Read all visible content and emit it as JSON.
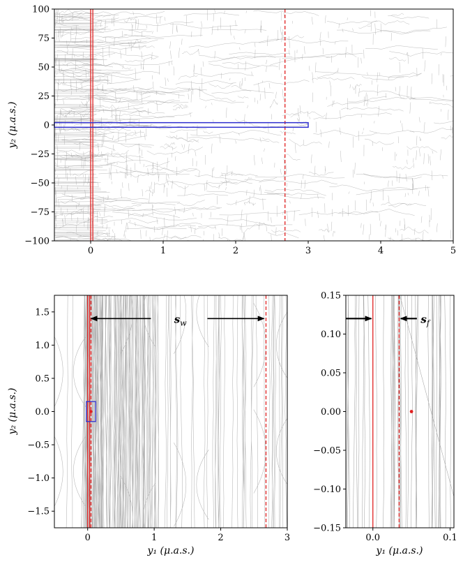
{
  "chart_data": [
    {
      "type": "line",
      "panel": "top",
      "xlim": [
        -0.5,
        5
      ],
      "ylim": [
        -100,
        100
      ],
      "xticks": [
        0,
        1,
        2,
        3,
        4,
        5
      ],
      "yticks": [
        -100,
        -75,
        -50,
        -25,
        0,
        25,
        50,
        75,
        100
      ],
      "xtick_labels": [
        "0",
        "1",
        "2",
        "3",
        "4",
        "5"
      ],
      "ytick_labels": [
        "−100",
        "−75",
        "−50",
        "−25",
        "0",
        "25",
        "50",
        "75",
        "100"
      ],
      "xlabel": "",
      "ylabel": "y₂ (μ.a.s.)",
      "caustic_color": "#9a9a9a",
      "reference_lines": [
        {
          "x": 0,
          "style": "solid",
          "color": "#e02020"
        },
        {
          "x": 0.03,
          "style": "solid",
          "color": "#e02020"
        },
        {
          "x": 2.68,
          "style": "dashed",
          "color": "#e02020"
        }
      ],
      "highlight_box": {
        "x": [
          -0.5,
          3
        ],
        "y": [
          -2,
          2
        ],
        "color": "#3030d0"
      },
      "grid": false
    },
    {
      "type": "line",
      "panel": "bottom-left",
      "xlim": [
        -0.5,
        3
      ],
      "ylim": [
        -1.75,
        1.75
      ],
      "xticks": [
        0,
        1,
        2,
        3
      ],
      "yticks": [
        -1.5,
        -1.0,
        -0.5,
        0.0,
        0.5,
        1.0,
        1.5
      ],
      "xtick_labels": [
        "0",
        "1",
        "2",
        "3"
      ],
      "ytick_labels": [
        "−1.5",
        "−1.0",
        "−0.5",
        "0.0",
        "0.5",
        "1.0",
        "1.5"
      ],
      "xlabel": "y₁ (μ.a.s.)",
      "ylabel": "y₂ (μ.a.s.)",
      "caustic_color": "#9a9a9a",
      "reference_lines": [
        {
          "x": 0,
          "style": "solid",
          "color": "#e02020"
        },
        {
          "x": 0.03,
          "style": "solid",
          "color": "#e02020"
        },
        {
          "x": 0.05,
          "style": "dashed",
          "color": "#e02020"
        },
        {
          "x": 2.68,
          "style": "dashed",
          "color": "#e02020"
        }
      ],
      "source_point": {
        "x": 0.05,
        "y": 0.0,
        "color": "#e02020"
      },
      "highlight_box": {
        "x": [
          -0.02,
          0.12
        ],
        "y": [
          -0.15,
          0.15
        ],
        "color": "#3030d0"
      },
      "annotations": [
        {
          "text": "s_w",
          "label": "s",
          "subscript": "w",
          "x": 1.3,
          "y": 1.4
        },
        {
          "arrow_from": 0.95,
          "arrow_to": 0.05,
          "y": 1.4,
          "direction": "left"
        },
        {
          "arrow_from": 1.8,
          "arrow_to": 2.65,
          "y": 1.4,
          "direction": "right"
        }
      ],
      "grid": false
    },
    {
      "type": "line",
      "panel": "bottom-right",
      "xlim": [
        -0.035,
        0.105
      ],
      "ylim": [
        -0.15,
        0.15
      ],
      "xticks": [
        0.0,
        0.1
      ],
      "yticks": [
        -0.15,
        -0.1,
        -0.05,
        0.0,
        0.05,
        0.1,
        0.15
      ],
      "xtick_labels": [
        "0.0",
        "0.1"
      ],
      "ytick_labels": [
        "−0.15",
        "−0.10",
        "−0.05",
        "0.00",
        "0.05",
        "0.10",
        "0.15"
      ],
      "xlabel": "y₁ (μ.a.s.)",
      "ylabel": "",
      "caustic_color": "#9a9a9a",
      "reference_lines": [
        {
          "x": 0.0,
          "style": "solid",
          "color": "#e02020"
        },
        {
          "x": 0.034,
          "style": "dashed",
          "color": "#e02020"
        }
      ],
      "source_point": {
        "x": 0.05,
        "y": 0.0,
        "color": "#e02020"
      },
      "annotations": [
        {
          "text": "s_f",
          "label": "s",
          "subscript": "f",
          "x": 0.062,
          "y": 0.12
        },
        {
          "arrow_from": -0.035,
          "arrow_to": -0.002,
          "y": 0.12,
          "direction": "right"
        },
        {
          "arrow_from": 0.057,
          "arrow_to": 0.036,
          "y": 0.12,
          "direction": "left"
        }
      ],
      "grid": false
    }
  ]
}
